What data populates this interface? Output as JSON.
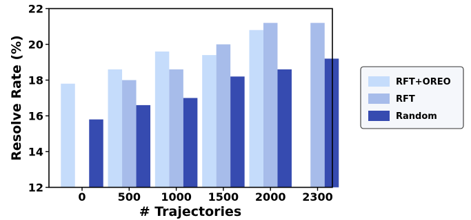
{
  "chart_data": {
    "type": "bar",
    "categories": [
      "0",
      "500",
      "1000",
      "1500",
      "2000",
      "2300"
    ],
    "series": [
      {
        "name": "RFT+OREO",
        "color": "#c5dcfb",
        "values": [
          17.8,
          18.6,
          19.6,
          19.4,
          20.8,
          null
        ]
      },
      {
        "name": "RFT",
        "color": "#a7bcea",
        "values": [
          null,
          18.0,
          18.6,
          20.0,
          21.2,
          21.2
        ]
      },
      {
        "name": "Random",
        "color": "#364bb0",
        "values": [
          15.8,
          16.6,
          17.0,
          18.2,
          18.6,
          19.2
        ]
      }
    ],
    "xlabel": "# Trajectories",
    "ylabel": "Resolve Rate (%)",
    "ylim": [
      12,
      22
    ],
    "yticks": [
      "12",
      "14",
      "16",
      "18",
      "20",
      "22"
    ],
    "grid": false,
    "legend_position": "right"
  }
}
